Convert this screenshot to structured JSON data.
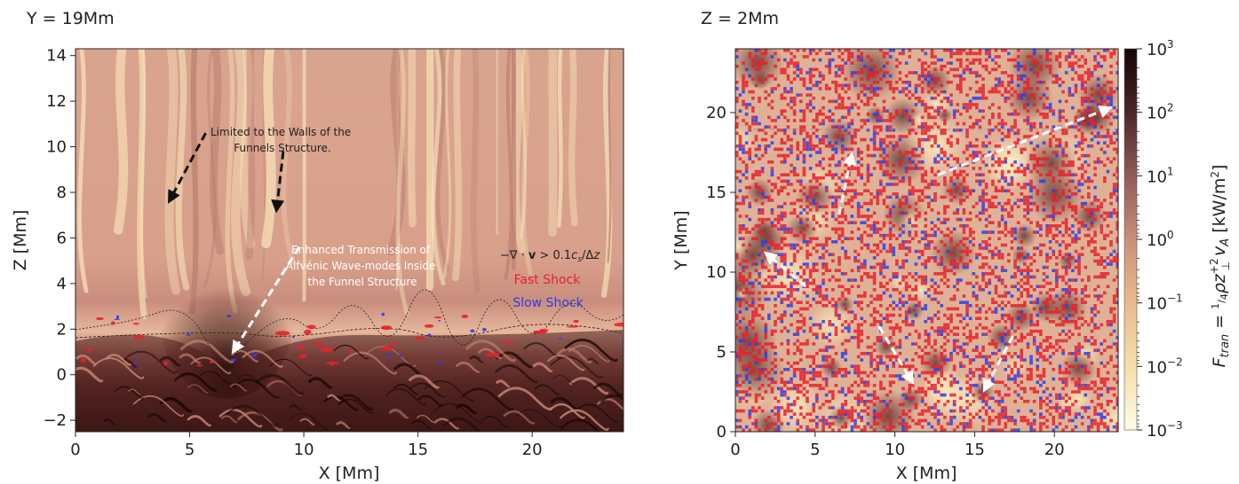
{
  "chart_data": [
    {
      "type": "heatmap",
      "title": "Y = 19Mm",
      "xlabel": "X [Mm]",
      "ylabel": "Z [Mm]",
      "xlim": [
        0,
        24
      ],
      "ylim": [
        -2.5,
        14.3
      ],
      "xticks": [
        0,
        5,
        10,
        15,
        20
      ],
      "yticks": [
        -2,
        0,
        2,
        4,
        6,
        8,
        10,
        12,
        14
      ],
      "annotations": [
        {
          "lines": [
            "Limited to the Walls of the",
            "Funnels Structure."
          ],
          "color": "#222222"
        },
        {
          "lines": [
            "Enhanced Transmission of",
            "Alfvénic Wave-modes Inside",
            "the Funnel Structure"
          ],
          "color": "#ffffff"
        }
      ],
      "legend": {
        "placement": "right",
        "header": "−∇ · v > 0.1c_s/Δz",
        "entries": [
          {
            "label": "Fast Shock",
            "color": "#e8202a"
          },
          {
            "label": "Slow Shock",
            "color": "#2d3de8"
          }
        ]
      },
      "arrows": [
        {
          "from": [
            5.7,
            10.6
          ],
          "to": [
            4.1,
            7.6
          ],
          "color": "#111111"
        },
        {
          "from": [
            9.1,
            9.8
          ],
          "to": [
            8.8,
            7.2
          ],
          "color": "#111111"
        },
        {
          "from": [
            9.8,
            5.6
          ],
          "to": [
            6.9,
            1.0
          ],
          "color": "#ffffff"
        }
      ]
    },
    {
      "type": "heatmap",
      "title": "Z = 2Mm",
      "xlabel": "X [Mm]",
      "ylabel": "Y [Mm]",
      "xlim": [
        0,
        24
      ],
      "ylim": [
        0,
        24
      ],
      "xticks": [
        0,
        5,
        10,
        15,
        20
      ],
      "yticks": [
        0,
        5,
        10,
        15,
        20
      ],
      "arrows": [
        {
          "from": [
            4.4,
            9.1
          ],
          "to": [
            1.9,
            11.2
          ],
          "color": "#ffffff"
        },
        {
          "from": [
            6.5,
            13.6
          ],
          "to": [
            7.3,
            17.4
          ],
          "color": "#ffffff"
        },
        {
          "from": [
            12.7,
            16.1
          ],
          "to": [
            23.5,
            20.3
          ],
          "color": "#ffffff"
        },
        {
          "from": [
            9.0,
            6.6
          ],
          "to": [
            11.1,
            3.1
          ],
          "color": "#ffffff"
        },
        {
          "from": [
            17.4,
            6.0
          ],
          "to": [
            15.6,
            2.6
          ],
          "color": "#ffffff"
        }
      ],
      "colorbar": {
        "label": "F_tran = 1/4 ρ z⊥+² v_A [kW/m²]",
        "scale": "log",
        "range": [
          0.001,
          1000
        ],
        "tick_exponents": [
          3,
          2,
          1,
          0,
          -1,
          -2,
          -3
        ],
        "cmap": [
          "#fefcea",
          "#f5dfa7",
          "#e9b98c",
          "#c98f7a",
          "#8e5a55",
          "#4a2526",
          "#150505"
        ]
      }
    }
  ]
}
